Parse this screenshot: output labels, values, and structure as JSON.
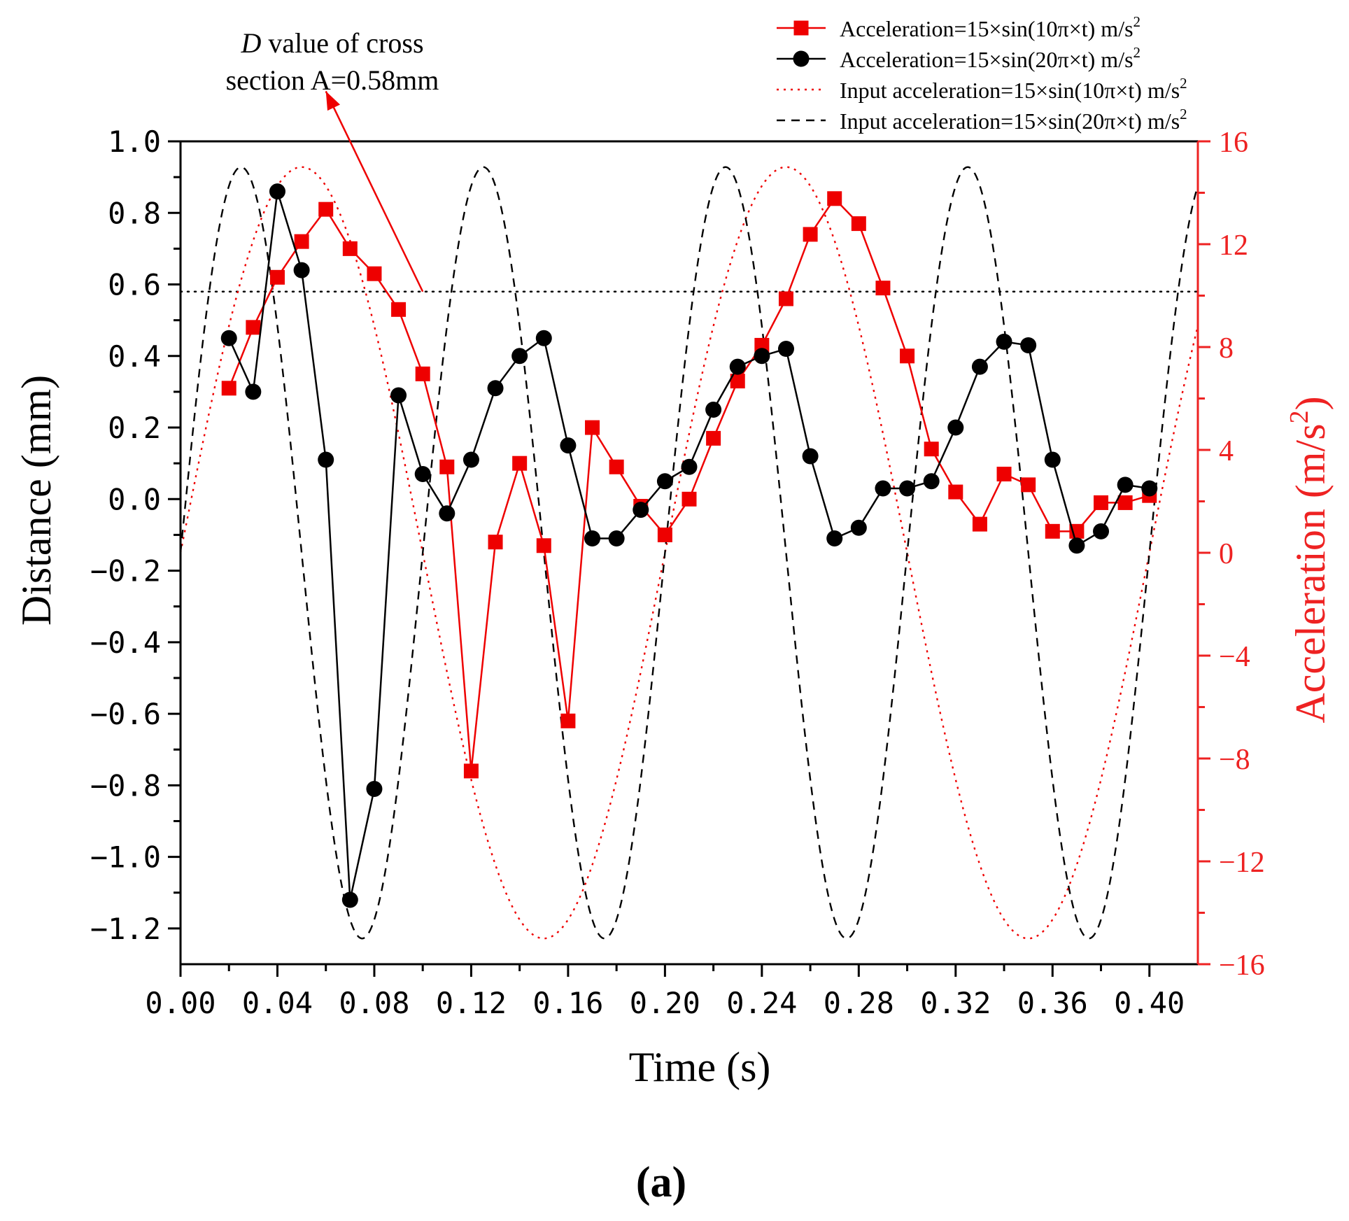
{
  "chart_data": {
    "type": "line",
    "panel_label": "(a)",
    "xlabel": "Time (s)",
    "ylabel_left": "Distance (mm)",
    "ylabel_right_base": "Acceleration (m/s",
    "ylabel_right_sup": "2",
    "ylabel_right_end": ")",
    "xlim": [
      0,
      0.42
    ],
    "ylim_left": [
      -1.3,
      1.0
    ],
    "ylim_right": [
      -16,
      16
    ],
    "x_ticks": [
      0,
      0.04,
      0.08,
      0.12,
      0.16,
      0.2,
      0.24,
      0.28,
      0.32,
      0.36,
      0.4
    ],
    "x_tick_labels": [
      "0.00",
      "0.04",
      "0.08",
      "0.12",
      "0.16",
      "0.20",
      "0.24",
      "0.28",
      "0.32",
      "0.36",
      "0.40"
    ],
    "y_left_ticks": [
      1.0,
      0.8,
      0.6,
      0.4,
      0.2,
      0.0,
      -0.2,
      -0.4,
      -0.6,
      -0.8,
      -1.0,
      -1.2
    ],
    "y_left_tick_labels": [
      "1.0",
      "0.8",
      "0.6",
      "0.4",
      "0.2",
      "0.0",
      "−0.2",
      "−0.4",
      "−0.6",
      "−0.8",
      "−1.0",
      "−1.2"
    ],
    "y_right_ticks": [
      16,
      12,
      8,
      4,
      0,
      -4,
      -8,
      -12,
      -16
    ],
    "y_right_tick_labels": [
      "16",
      "12",
      "8",
      "4",
      "0",
      "−4",
      "−8",
      "−12",
      "−16"
    ],
    "reference_line": {
      "axis": "left",
      "y": 0.58
    },
    "annotation": {
      "italic": "D",
      "line1_rest": " value of cross",
      "line2": "section A=0.58mm",
      "arrow_from": {
        "x": 0.1,
        "y": 0.58
      },
      "arrow_to": {
        "x": 0.06,
        "y": 1.14
      }
    },
    "series": [
      {
        "name": "Acceleration=15×sin(10π×t) m/s",
        "name_sup": "2",
        "axis": "left",
        "color": "#ee0000",
        "marker": "square",
        "x": [
          0.02,
          0.03,
          0.04,
          0.05,
          0.06,
          0.07,
          0.08,
          0.09,
          0.1,
          0.11,
          0.12,
          0.13,
          0.14,
          0.15,
          0.16,
          0.17,
          0.18,
          0.19,
          0.2,
          0.21,
          0.22,
          0.23,
          0.24,
          0.25,
          0.26,
          0.27,
          0.28,
          0.29,
          0.3,
          0.31,
          0.32,
          0.33,
          0.34,
          0.35,
          0.36,
          0.37,
          0.38,
          0.39,
          0.4
        ],
        "values": [
          0.31,
          0.48,
          0.62,
          0.72,
          0.81,
          0.7,
          0.63,
          0.53,
          0.35,
          0.09,
          -0.76,
          -0.12,
          0.1,
          -0.13,
          -0.62,
          0.2,
          0.09,
          -0.02,
          -0.1,
          0.0,
          0.17,
          0.33,
          0.43,
          0.56,
          0.74,
          0.84,
          0.77,
          0.59,
          0.4,
          0.14,
          0.02,
          -0.07,
          0.07,
          0.04,
          -0.09,
          -0.09,
          -0.01,
          -0.01,
          0.01
        ]
      },
      {
        "name": "Acceleration=15×sin(20π×t) m/s",
        "name_sup": "2",
        "axis": "left",
        "color": "#000000",
        "marker": "circle",
        "x": [
          0.02,
          0.03,
          0.04,
          0.05,
          0.06,
          0.07,
          0.08,
          0.09,
          0.1,
          0.11,
          0.12,
          0.13,
          0.14,
          0.15,
          0.16,
          0.17,
          0.18,
          0.19,
          0.2,
          0.21,
          0.22,
          0.23,
          0.24,
          0.25,
          0.26,
          0.27,
          0.28,
          0.29,
          0.3,
          0.31,
          0.32,
          0.33,
          0.34,
          0.35,
          0.36,
          0.37,
          0.38,
          0.39,
          0.4
        ],
        "values": [
          0.45,
          0.3,
          0.86,
          0.64,
          0.11,
          -1.12,
          -0.81,
          0.29,
          0.07,
          -0.04,
          0.11,
          0.31,
          0.4,
          0.45,
          0.15,
          -0.11,
          -0.11,
          -0.03,
          0.05,
          0.09,
          0.25,
          0.37,
          0.4,
          0.42,
          0.12,
          -0.11,
          -0.08,
          0.03,
          0.03,
          0.05,
          0.2,
          0.37,
          0.44,
          0.43,
          0.11,
          -0.13,
          -0.09,
          0.04,
          0.03
        ]
      },
      {
        "name": "Input acceleration=15×sin(10π×t) m/s",
        "name_sup": "2",
        "axis": "right",
        "color": "#ee0000",
        "linestyle": "dotted",
        "function": {
          "amplitude": 15,
          "frequency_hz": 5,
          "offset": 0
        }
      },
      {
        "name": "Input acceleration=15×sin(20π×t) m/s",
        "name_sup": "2",
        "axis": "right",
        "color": "#000000",
        "linestyle": "dashed",
        "function": {
          "amplitude": 15,
          "frequency_hz": 10,
          "offset": 0
        }
      }
    ]
  }
}
